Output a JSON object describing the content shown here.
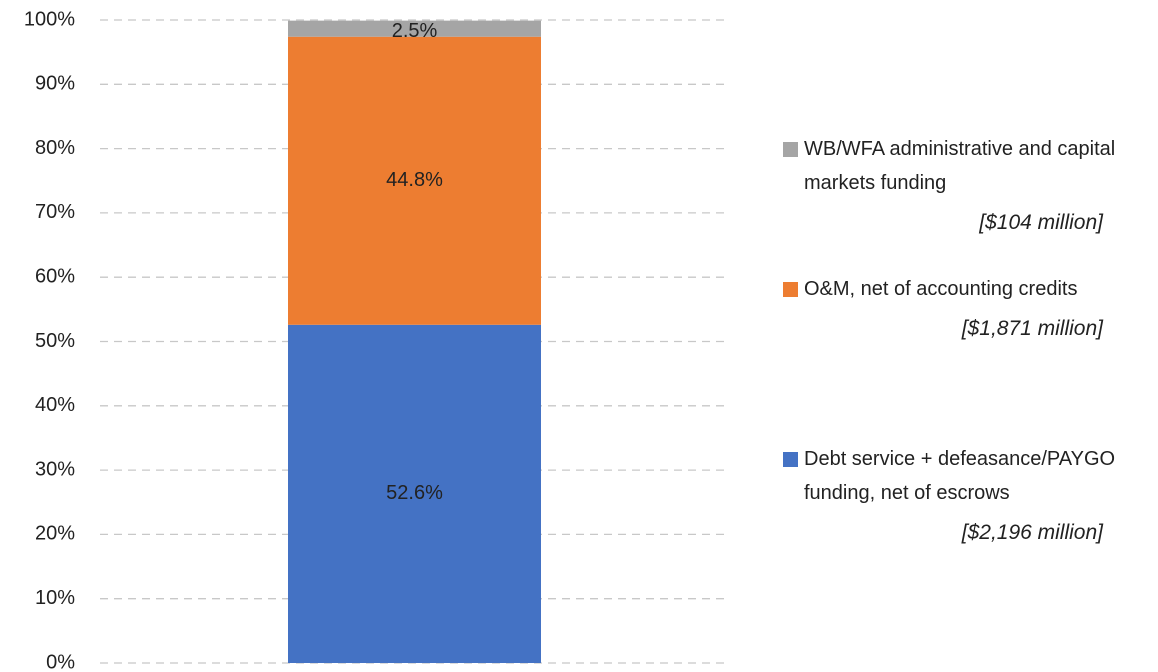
{
  "chart_data": {
    "type": "stacked_bar",
    "categories": [
      null
    ],
    "series": [
      {
        "name": "Debt service + defeasance/PAYGO funding, net of escrows",
        "note": "[$2,196 million]",
        "color": "#4472c4",
        "values": [
          52.6
        ],
        "value_labels": [
          "52.6%"
        ]
      },
      {
        "name": "O&M, net of accounting credits",
        "note": "[$1,871 million]",
        "color": "#ed7d31",
        "values": [
          44.8
        ],
        "value_labels": [
          "44.8%"
        ]
      },
      {
        "name": "WB/WFA administrative and capital markets funding",
        "note": "[$104 million]",
        "color": "#a5a5a5",
        "values": [
          2.5
        ],
        "value_labels": [
          "2.5%"
        ]
      }
    ],
    "ylim": [
      0,
      100
    ],
    "yticks": [
      {
        "value": 0,
        "label": "0%"
      },
      {
        "value": 10,
        "label": "10%"
      },
      {
        "value": 20,
        "label": "20%"
      },
      {
        "value": 30,
        "label": "30%"
      },
      {
        "value": 40,
        "label": "40%"
      },
      {
        "value": 50,
        "label": "50%"
      },
      {
        "value": 60,
        "label": "60%"
      },
      {
        "value": 70,
        "label": "70%"
      },
      {
        "value": 80,
        "label": "80%"
      },
      {
        "value": 90,
        "label": "90%"
      },
      {
        "value": 100,
        "label": "100%"
      }
    ],
    "grid": true
  }
}
